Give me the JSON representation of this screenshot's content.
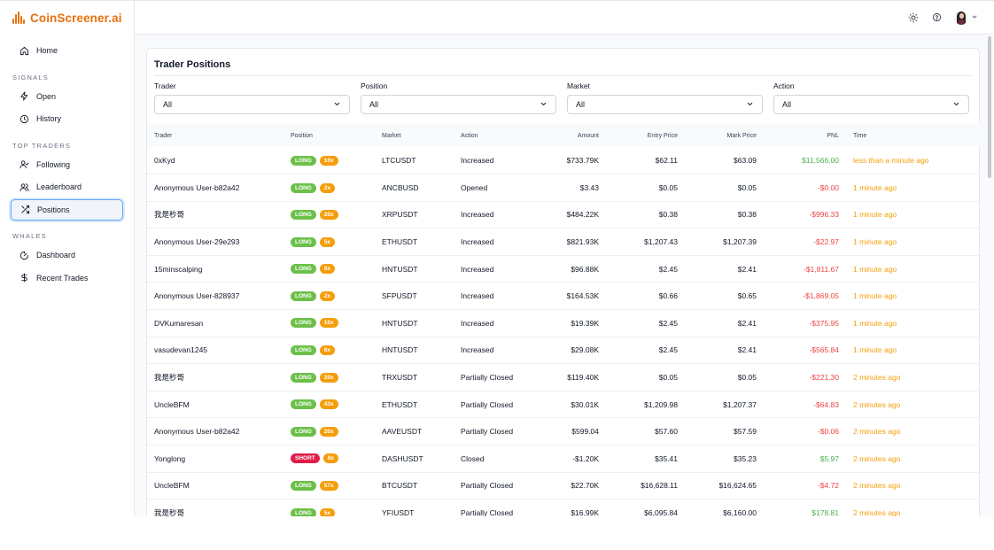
{
  "brand": {
    "name": "CoinScreener.ai",
    "color": "#e8720c"
  },
  "sidebar": {
    "home": {
      "label": "Home",
      "icon": "home-icon"
    },
    "sections": [
      {
        "title": "SIGNALS",
        "items": [
          {
            "label": "Open",
            "icon": "pulse-icon"
          },
          {
            "label": "History",
            "icon": "clock-icon"
          }
        ]
      },
      {
        "title": "TOP TRADERS",
        "items": [
          {
            "label": "Following",
            "icon": "user-check-icon"
          },
          {
            "label": "Leaderboard",
            "icon": "users-icon"
          },
          {
            "label": "Positions",
            "icon": "shuffle-icon",
            "active": true
          }
        ]
      },
      {
        "title": "WHALES",
        "items": [
          {
            "label": "Dashboard",
            "icon": "gauge-icon"
          },
          {
            "label": "Recent Trades",
            "icon": "dollar-icon"
          }
        ]
      }
    ]
  },
  "topbar": {
    "icons": [
      "sun-icon",
      "help-icon",
      "avatar",
      "chevron-down-icon"
    ]
  },
  "panel": {
    "title": "Trader Positions",
    "filters": [
      {
        "label": "Trader",
        "value": "All"
      },
      {
        "label": "Position",
        "value": "All"
      },
      {
        "label": "Market",
        "value": "All"
      },
      {
        "label": "Action",
        "value": "All"
      }
    ]
  },
  "table": {
    "columns": [
      "Trader",
      "Position",
      "Market",
      "Action",
      "Amount",
      "Entry Price",
      "Mark Price",
      "PNL",
      "Time"
    ],
    "rows": [
      {
        "trader": "0xKyd",
        "side": "LONG",
        "lev": "10x",
        "market": "LTCUSDT",
        "action": "Increased",
        "amount": "$733.79K",
        "entry": "$62.11",
        "mark": "$63.09",
        "pnl": "$11,566.00",
        "pnl_sign": "pos",
        "time": "less than a minute ago"
      },
      {
        "trader": "Anonymous User-b82a42",
        "side": "LONG",
        "lev": "2x",
        "market": "ANCBUSD",
        "action": "Opened",
        "amount": "$3.43",
        "entry": "$0.05",
        "mark": "$0.05",
        "pnl": "-$0.00",
        "pnl_sign": "neg",
        "time": "1 minute ago"
      },
      {
        "trader": "我是秒哥",
        "side": "LONG",
        "lev": "20x",
        "market": "XRPUSDT",
        "action": "Increased",
        "amount": "$484.22K",
        "entry": "$0.38",
        "mark": "$0.38",
        "pnl": "-$996.33",
        "pnl_sign": "neg",
        "time": "1 minute ago"
      },
      {
        "trader": "Anonymous User-29e293",
        "side": "LONG",
        "lev": "5x",
        "market": "ETHUSDT",
        "action": "Increased",
        "amount": "$821.93K",
        "entry": "$1,207.43",
        "mark": "$1,207.39",
        "pnl": "-$22.97",
        "pnl_sign": "neg",
        "time": "1 minute ago"
      },
      {
        "trader": "15minscalping",
        "side": "LONG",
        "lev": "8x",
        "market": "HNTUSDT",
        "action": "Increased",
        "amount": "$96.88K",
        "entry": "$2.45",
        "mark": "$2.41",
        "pnl": "-$1,811.67",
        "pnl_sign": "neg",
        "time": "1 minute ago"
      },
      {
        "trader": "Anonymous User-828937",
        "side": "LONG",
        "lev": "2x",
        "market": "SFPUSDT",
        "action": "Increased",
        "amount": "$164.53K",
        "entry": "$0.66",
        "mark": "$0.65",
        "pnl": "-$1,869.05",
        "pnl_sign": "neg",
        "time": "1 minute ago"
      },
      {
        "trader": "DVKumaresan",
        "side": "LONG",
        "lev": "10x",
        "market": "HNTUSDT",
        "action": "Increased",
        "amount": "$19.39K",
        "entry": "$2.45",
        "mark": "$2.41",
        "pnl": "-$375.95",
        "pnl_sign": "neg",
        "time": "1 minute ago"
      },
      {
        "trader": "vasudevan1245",
        "side": "LONG",
        "lev": "8x",
        "market": "HNTUSDT",
        "action": "Increased",
        "amount": "$29.08K",
        "entry": "$2.45",
        "mark": "$2.41",
        "pnl": "-$565.84",
        "pnl_sign": "neg",
        "time": "1 minute ago"
      },
      {
        "trader": "我是秒哥",
        "side": "LONG",
        "lev": "20x",
        "market": "TRXUSDT",
        "action": "Partially Closed",
        "amount": "$119.40K",
        "entry": "$0.05",
        "mark": "$0.05",
        "pnl": "-$221.30",
        "pnl_sign": "neg",
        "time": "2 minutes ago"
      },
      {
        "trader": "UncleBFM",
        "side": "LONG",
        "lev": "43x",
        "market": "ETHUSDT",
        "action": "Partially Closed",
        "amount": "$30.01K",
        "entry": "$1,209.98",
        "mark": "$1,207.37",
        "pnl": "-$64.83",
        "pnl_sign": "neg",
        "time": "2 minutes ago"
      },
      {
        "trader": "Anonymous User-b82a42",
        "side": "LONG",
        "lev": "20x",
        "market": "AAVEUSDT",
        "action": "Partially Closed",
        "amount": "$599.04",
        "entry": "$57.60",
        "mark": "$57.59",
        "pnl": "-$0.06",
        "pnl_sign": "neg",
        "time": "2 minutes ago"
      },
      {
        "trader": "Yonglong",
        "side": "SHORT",
        "lev": "8x",
        "market": "DASHUSDT",
        "action": "Closed",
        "amount": "-$1.20K",
        "entry": "$35.41",
        "mark": "$35.23",
        "pnl": "$5.97",
        "pnl_sign": "pos",
        "time": "2 minutes ago"
      },
      {
        "trader": "UncleBFM",
        "side": "LONG",
        "lev": "57x",
        "market": "BTCUSDT",
        "action": "Partially Closed",
        "amount": "$22.70K",
        "entry": "$16,628.11",
        "mark": "$16,624.65",
        "pnl": "-$4.72",
        "pnl_sign": "neg",
        "time": "2 minutes ago"
      },
      {
        "trader": "我是秒哥",
        "side": "LONG",
        "lev": "5x",
        "market": "YFIUSDT",
        "action": "Partially Closed",
        "amount": "$16.99K",
        "entry": "$6,095.84",
        "mark": "$6,160.00",
        "pnl": "$178.81",
        "pnl_sign": "pos",
        "time": "2 minutes ago"
      }
    ]
  },
  "colors": {
    "long": "#6cc04a",
    "short": "#e11d48",
    "leverage": "#f59e0b",
    "pnl_positive": "#4caf50",
    "pnl_negative": "#ef4444",
    "time": "#f59e0b"
  }
}
